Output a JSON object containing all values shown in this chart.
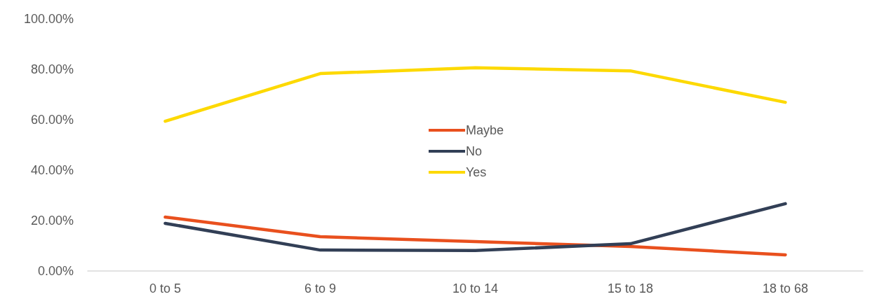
{
  "chart_data": {
    "type": "line",
    "categories": [
      "0 to 5",
      "6 to 9",
      "10 to 14",
      "15 to 18",
      "18 to 68"
    ],
    "series": [
      {
        "name": "Maybe",
        "color": "#e9501e",
        "values": [
          21.4,
          13.6,
          11.7,
          9.7,
          6.4
        ]
      },
      {
        "name": "No",
        "color": "#323f56",
        "values": [
          18.9,
          8.3,
          8.1,
          10.8,
          26.7
        ]
      },
      {
        "name": "Yes",
        "color": "#fdd900",
        "values": [
          59.4,
          78.3,
          80.6,
          79.4,
          66.9
        ]
      }
    ],
    "ylim": [
      0,
      100
    ],
    "yticks": [
      {
        "value": 0,
        "label": "0.00%"
      },
      {
        "value": 20,
        "label": "20.00%"
      },
      {
        "value": 40,
        "label": "40.00%"
      },
      {
        "value": 60,
        "label": "60.00%"
      },
      {
        "value": 80,
        "label": "80.00%"
      },
      {
        "value": 100,
        "label": "100.00%"
      }
    ],
    "grid": false,
    "legend": "center",
    "marker": "none",
    "line_style": "solid"
  }
}
